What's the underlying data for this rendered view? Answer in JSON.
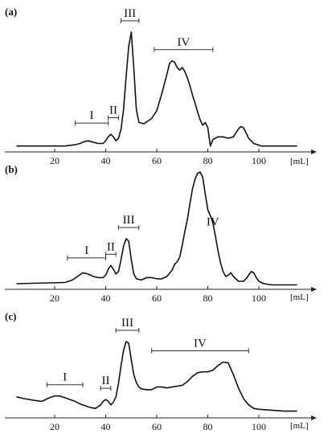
{
  "chart_data": [
    {
      "type": "line",
      "panel_label": "(a)",
      "xlabel": "[mL]",
      "xlim": [
        5,
        115
      ],
      "ylim": [
        0,
        1.0
      ],
      "xticks": [
        20,
        40,
        60,
        80,
        100
      ],
      "regions": [
        {
          "label": "I",
          "x_start": 28,
          "x_end": 41
        },
        {
          "label": "II",
          "x_start": 41,
          "x_end": 45
        },
        {
          "label": "III",
          "x_start": 46,
          "x_end": 53
        },
        {
          "label": "IV",
          "x_start": 59,
          "x_end": 82
        }
      ],
      "series": [
        {
          "x": [
            5,
            24,
            28,
            30,
            31,
            33,
            35,
            37,
            39,
            40,
            41,
            42,
            43,
            44,
            45,
            46,
            47,
            48,
            49,
            50,
            51,
            52,
            53,
            55,
            58,
            60,
            62,
            64,
            65,
            66,
            67,
            68,
            69,
            70,
            71,
            72,
            73,
            74,
            75,
            76,
            77,
            78,
            79,
            80,
            81,
            82,
            84,
            86,
            88,
            90,
            91,
            92,
            93,
            94,
            95,
            96,
            98,
            101,
            105,
            110,
            115
          ],
          "y": [
            0.02,
            0.02,
            0.03,
            0.04,
            0.05,
            0.06,
            0.05,
            0.04,
            0.04,
            0.06,
            0.09,
            0.11,
            0.09,
            0.06,
            0.08,
            0.15,
            0.3,
            0.55,
            0.78,
            0.89,
            0.62,
            0.3,
            0.2,
            0.19,
            0.23,
            0.29,
            0.42,
            0.57,
            0.65,
            0.67,
            0.66,
            0.62,
            0.6,
            0.62,
            0.59,
            0.54,
            0.48,
            0.41,
            0.35,
            0.28,
            0.22,
            0.18,
            0.2,
            0.16,
            0.02,
            0.07,
            0.09,
            0.09,
            0.08,
            0.09,
            0.12,
            0.15,
            0.17,
            0.16,
            0.12,
            0.08,
            0.04,
            0.02,
            0.02,
            0.02,
            0.02
          ]
        }
      ]
    },
    {
      "type": "line",
      "panel_label": "(b)",
      "xlabel": "[mL]",
      "xlim": [
        5,
        115
      ],
      "ylim": [
        0,
        1.0
      ],
      "xticks": [
        20,
        40,
        60,
        80,
        100
      ],
      "regions": [
        {
          "label": "I",
          "x_start": 25,
          "x_end": 40
        },
        {
          "label": "II",
          "x_start": 40,
          "x_end": 44
        },
        {
          "label": "III",
          "x_start": 45,
          "x_end": 53
        },
        {
          "label": "IV",
          "region_bar": false
        }
      ],
      "series": [
        {
          "x": [
            5,
            24,
            27,
            29,
            31,
            33,
            35,
            37,
            39,
            40,
            41,
            42,
            43,
            44,
            45,
            46,
            47,
            48,
            49,
            50,
            51,
            52,
            54,
            56,
            58,
            60,
            62,
            64,
            66,
            67,
            68,
            69,
            70,
            71,
            72,
            73,
            74,
            75,
            76,
            77,
            78,
            79,
            80,
            81,
            82,
            83,
            84,
            85,
            86,
            87,
            88,
            89,
            90,
            92,
            94,
            95,
            96,
            97,
            98,
            99,
            100,
            102,
            105,
            110,
            115
          ],
          "y": [
            0.02,
            0.03,
            0.05,
            0.08,
            0.11,
            0.1,
            0.08,
            0.07,
            0.07,
            0.09,
            0.14,
            0.17,
            0.14,
            0.1,
            0.12,
            0.22,
            0.33,
            0.39,
            0.37,
            0.22,
            0.1,
            0.06,
            0.05,
            0.07,
            0.07,
            0.06,
            0.06,
            0.08,
            0.13,
            0.18,
            0.2,
            0.24,
            0.34,
            0.45,
            0.55,
            0.68,
            0.8,
            0.88,
            0.93,
            0.94,
            0.9,
            0.76,
            0.63,
            0.58,
            0.52,
            0.41,
            0.29,
            0.19,
            0.12,
            0.08,
            0.09,
            0.11,
            0.08,
            0.04,
            0.04,
            0.06,
            0.09,
            0.12,
            0.11,
            0.07,
            0.04,
            0.02,
            0.01,
            0.01,
            0.01
          ]
        }
      ]
    },
    {
      "type": "line",
      "panel_label": "(c)",
      "xlabel": "[mL]",
      "xlim": [
        5,
        115
      ],
      "ylim": [
        0,
        1.0
      ],
      "xticks": [
        20,
        40,
        60,
        80,
        100
      ],
      "regions": [
        {
          "label": "I",
          "x_start": 17,
          "x_end": 31
        },
        {
          "label": "II",
          "x_start": 38,
          "x_end": 42
        },
        {
          "label": "III",
          "x_start": 44,
          "x_end": 53
        },
        {
          "label": "IV",
          "x_start": 58,
          "x_end": 96
        }
      ],
      "series": [
        {
          "x": [
            5,
            8,
            12,
            15,
            18,
            20,
            22,
            24,
            26,
            28,
            30,
            32,
            34,
            36,
            38,
            39,
            40,
            41,
            42,
            43,
            44,
            45,
            46,
            47,
            48,
            49,
            50,
            51,
            52,
            53,
            54,
            56,
            58,
            60,
            62,
            64,
            66,
            68,
            70,
            72,
            74,
            76,
            78,
            80,
            82,
            84,
            86,
            88,
            90,
            92,
            94,
            96,
            98,
            100,
            105,
            110,
            115
          ],
          "y": [
            0.2,
            0.18,
            0.16,
            0.15,
            0.19,
            0.21,
            0.21,
            0.19,
            0.17,
            0.15,
            0.12,
            0.1,
            0.08,
            0.07,
            0.11,
            0.15,
            0.17,
            0.15,
            0.11,
            0.14,
            0.2,
            0.35,
            0.55,
            0.72,
            0.82,
            0.8,
            0.62,
            0.45,
            0.36,
            0.31,
            0.29,
            0.28,
            0.28,
            0.31,
            0.31,
            0.3,
            0.31,
            0.32,
            0.33,
            0.37,
            0.43,
            0.47,
            0.48,
            0.48,
            0.5,
            0.55,
            0.59,
            0.58,
            0.45,
            0.3,
            0.18,
            0.11,
            0.07,
            0.06,
            0.05,
            0.04,
            0.04
          ]
        }
      ]
    }
  ]
}
